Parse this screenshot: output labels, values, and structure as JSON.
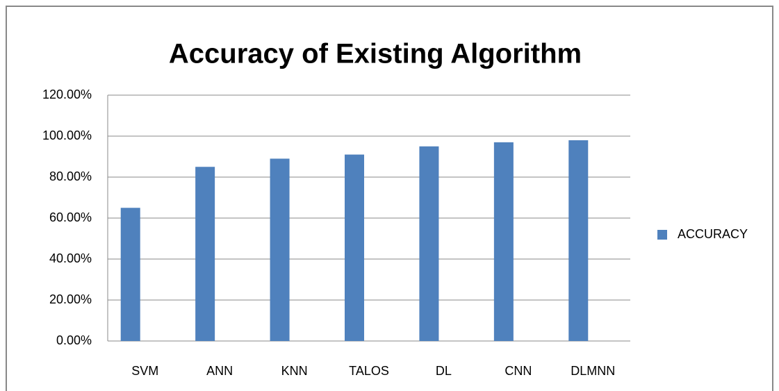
{
  "chart_data": {
    "type": "bar",
    "title": "Accuracy of Existing Algorithm",
    "categories": [
      "SVM",
      "ANN",
      "KNN",
      "TALOS",
      "DL",
      "CNN",
      "DLMNN"
    ],
    "series": [
      {
        "name": "ACCURACY",
        "color": "#4f81bd",
        "values": [
          65,
          85,
          89,
          91,
          95,
          97,
          98
        ]
      }
    ],
    "ylim": [
      0,
      120
    ],
    "yticks": [
      {
        "value": 0,
        "label": "0.00%"
      },
      {
        "value": 20,
        "label": "20.00%"
      },
      {
        "value": 40,
        "label": "40.00%"
      },
      {
        "value": 60,
        "label": "60.00%"
      },
      {
        "value": 80,
        "label": "80.00%"
      },
      {
        "value": 100,
        "label": "100.00%"
      },
      {
        "value": 120,
        "label": "120.00%"
      }
    ],
    "grid": true,
    "legend": "right"
  }
}
